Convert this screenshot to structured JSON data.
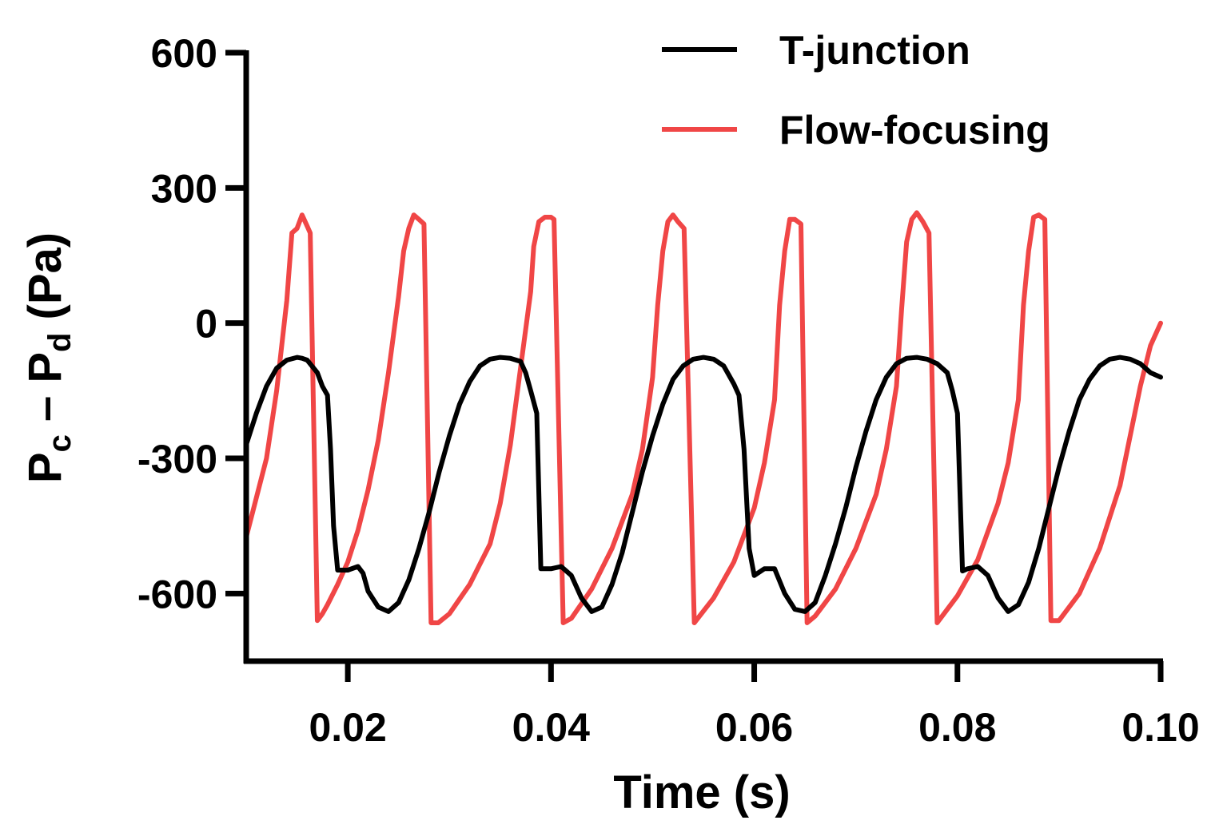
{
  "chart_data": {
    "type": "line",
    "title": "",
    "xlabel": "Time (s)",
    "ylabel": {
      "parts": [
        {
          "text": "P",
          "style": "normal"
        },
        {
          "text": "c",
          "style": "sub"
        },
        {
          "text": " – P",
          "style": "normal"
        },
        {
          "text": "d",
          "style": "sub"
        },
        {
          "text": " (Pa)",
          "style": "normal"
        }
      ]
    },
    "xlim": [
      0.01,
      0.1
    ],
    "ylim": [
      -750,
      600
    ],
    "xticks": [
      0.02,
      0.04,
      0.06,
      0.08,
      0.1
    ],
    "xtick_labels": [
      "0.02",
      "0.04",
      "0.06",
      "0.08",
      "0.10"
    ],
    "yticks": [
      600,
      300,
      0,
      -300,
      -600
    ],
    "ytick_labels": [
      "600",
      "300",
      "0",
      "-300",
      "-600"
    ],
    "grid": false,
    "legend_position": "top-right",
    "series": [
      {
        "name": "T-junction",
        "color": "#000000",
        "x": [
          0.01,
          0.011,
          0.012,
          0.013,
          0.014,
          0.015,
          0.0155,
          0.016,
          0.017,
          0.0175,
          0.018,
          0.0183,
          0.0186,
          0.019,
          0.02,
          0.021,
          0.0215,
          0.022,
          0.023,
          0.024,
          0.025,
          0.026,
          0.027,
          0.028,
          0.029,
          0.03,
          0.031,
          0.032,
          0.033,
          0.034,
          0.035,
          0.036,
          0.037,
          0.0375,
          0.038,
          0.0386,
          0.039,
          0.04,
          0.041,
          0.042,
          0.043,
          0.044,
          0.045,
          0.046,
          0.047,
          0.048,
          0.049,
          0.05,
          0.051,
          0.052,
          0.053,
          0.054,
          0.055,
          0.056,
          0.057,
          0.058,
          0.0585,
          0.059,
          0.0595,
          0.06,
          0.061,
          0.062,
          0.063,
          0.064,
          0.065,
          0.066,
          0.067,
          0.068,
          0.069,
          0.07,
          0.071,
          0.072,
          0.073,
          0.074,
          0.075,
          0.076,
          0.077,
          0.078,
          0.079,
          0.0795,
          0.08,
          0.0805,
          0.081,
          0.082,
          0.083,
          0.084,
          0.085,
          0.086,
          0.087,
          0.088,
          0.089,
          0.09,
          0.091,
          0.092,
          0.093,
          0.094,
          0.095,
          0.096,
          0.097,
          0.098,
          0.099,
          0.1
        ],
        "y": [
          -270,
          -200,
          -140,
          -100,
          -82,
          -76,
          -78,
          -82,
          -110,
          -140,
          -160,
          -280,
          -450,
          -548,
          -548,
          -540,
          -555,
          -595,
          -630,
          -640,
          -620,
          -570,
          -500,
          -420,
          -330,
          -250,
          -180,
          -130,
          -95,
          -80,
          -76,
          -78,
          -85,
          -110,
          -150,
          -200,
          -545,
          -545,
          -540,
          -560,
          -610,
          -640,
          -630,
          -580,
          -510,
          -420,
          -330,
          -250,
          -180,
          -125,
          -95,
          -80,
          -76,
          -80,
          -95,
          -135,
          -160,
          -280,
          -500,
          -560,
          -545,
          -545,
          -600,
          -635,
          -640,
          -620,
          -560,
          -490,
          -410,
          -320,
          -240,
          -170,
          -120,
          -90,
          -78,
          -76,
          -80,
          -90,
          -110,
          -150,
          -200,
          -550,
          -545,
          -540,
          -560,
          -610,
          -640,
          -625,
          -575,
          -500,
          -410,
          -320,
          -240,
          -170,
          -125,
          -95,
          -80,
          -76,
          -80,
          -90,
          -110,
          -120
        ]
      },
      {
        "name": "Flow-focusing",
        "color": "#f04646",
        "x": [
          0.01,
          0.012,
          0.013,
          0.014,
          0.0145,
          0.015,
          0.0155,
          0.016,
          0.0163,
          0.017,
          0.0175,
          0.018,
          0.019,
          0.02,
          0.021,
          0.022,
          0.023,
          0.024,
          0.025,
          0.0255,
          0.026,
          0.0265,
          0.027,
          0.0275,
          0.0282,
          0.0289,
          0.03,
          0.032,
          0.034,
          0.035,
          0.036,
          0.037,
          0.038,
          0.0383,
          0.0388,
          0.0394,
          0.04,
          0.0403,
          0.0412,
          0.042,
          0.044,
          0.046,
          0.048,
          0.049,
          0.05,
          0.0505,
          0.051,
          0.0515,
          0.052,
          0.0525,
          0.0531,
          0.0541,
          0.056,
          0.058,
          0.06,
          0.061,
          0.062,
          0.0625,
          0.063,
          0.0635,
          0.064,
          0.0646,
          0.0652,
          0.066,
          0.068,
          0.07,
          0.072,
          0.073,
          0.074,
          0.0745,
          0.075,
          0.0755,
          0.076,
          0.0766,
          0.0772,
          0.078,
          0.08,
          0.082,
          0.084,
          0.085,
          0.086,
          0.0865,
          0.087,
          0.0875,
          0.088,
          0.0886,
          0.0892,
          0.09,
          0.092,
          0.094,
          0.096,
          0.098,
          0.099,
          0.1
        ],
        "y": [
          -475,
          -300,
          -150,
          50,
          200,
          210,
          240,
          215,
          200,
          -660,
          -645,
          -625,
          -580,
          -530,
          -460,
          -370,
          -260,
          -110,
          60,
          160,
          210,
          240,
          230,
          220,
          -665,
          -665,
          -645,
          -580,
          -490,
          -400,
          -270,
          -100,
          70,
          170,
          225,
          235,
          235,
          230,
          -665,
          -655,
          -590,
          -500,
          -380,
          -280,
          -120,
          40,
          160,
          225,
          240,
          225,
          210,
          -665,
          -610,
          -530,
          -410,
          -310,
          -170,
          40,
          160,
          230,
          230,
          220,
          -665,
          -650,
          -590,
          -500,
          -380,
          -280,
          -140,
          30,
          180,
          230,
          245,
          225,
          200,
          -665,
          -605,
          -525,
          -400,
          -310,
          -170,
          40,
          160,
          235,
          240,
          230,
          -660,
          -660,
          -600,
          -500,
          -360,
          -140,
          -50,
          0
        ]
      }
    ]
  }
}
